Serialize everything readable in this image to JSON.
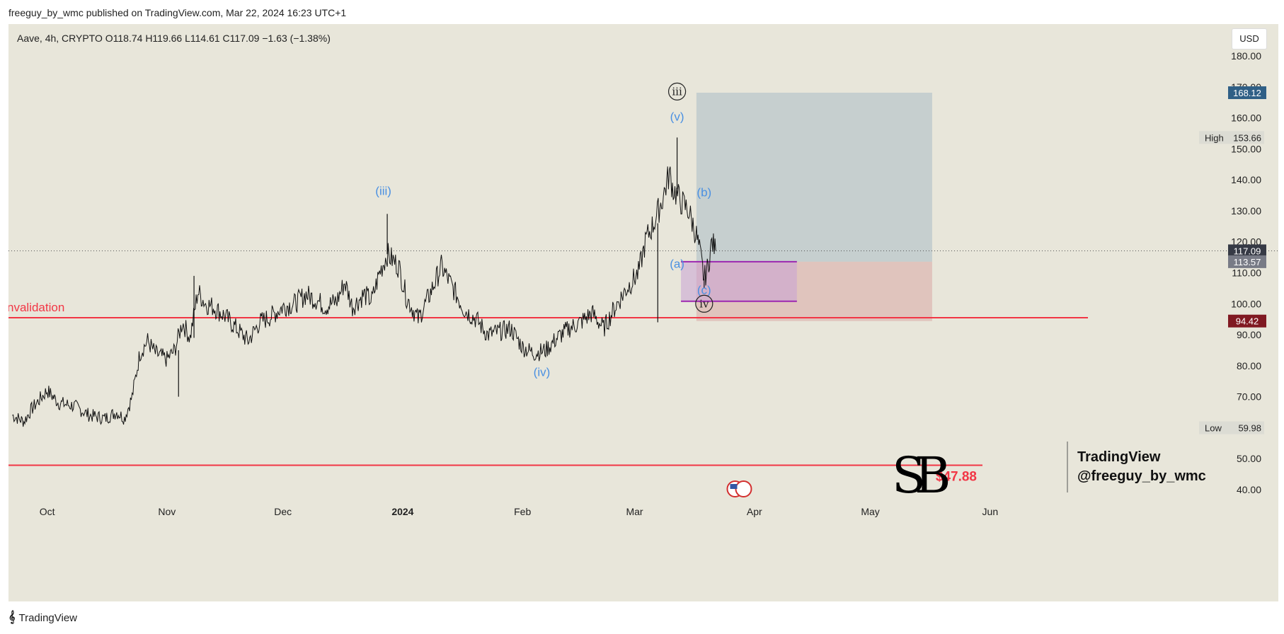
{
  "header": {
    "published_line": "freeguy_by_wmc published on TradingView.com, Mar 22, 2024 16:23 UTC+1"
  },
  "symbol_info": "Aave, 4h, CRYPTO  O118.74  H119.66  L114.61  C117.09  −1.63 (−1.38%)",
  "currency_button": "USD",
  "footer": {
    "brand": "TradingView"
  },
  "watermark": {
    "line1": "TradingView",
    "line2": "@freeguy_by_wmc",
    "logo_letters": "SB"
  },
  "colors": {
    "background": "#e8e6da",
    "candles": "#111111",
    "red_line": "#f23645",
    "wave_label_blue": "#4a90e2",
    "target_zone": "#a9bcc6",
    "stop_zone": "#d9a8a6",
    "purple_box": "#9c27b0",
    "last_price_tag": "#363a45",
    "entry_tag": "#787b86",
    "target_tag": "#2f5f86",
    "stop_tag": "#801922"
  },
  "chart_data": {
    "type": "candlestick-line",
    "ylim": [
      37,
      190
    ],
    "y_ticks": [
      "180.00",
      "170.00",
      "160.00",
      "150.00",
      "140.00",
      "130.00",
      "120.00",
      "110.00",
      "100.00",
      "90.00",
      "80.00",
      "70.00",
      "60.00",
      "50.00",
      "40.00"
    ],
    "x_ticks": [
      {
        "label": "Oct",
        "date": "2023-10-01",
        "bold": false
      },
      {
        "label": "Nov",
        "date": "2023-11-01",
        "bold": false
      },
      {
        "label": "Dec",
        "date": "2023-12-01",
        "bold": false
      },
      {
        "label": "2024",
        "date": "2024-01-01",
        "bold": true
      },
      {
        "label": "Feb",
        "date": "2024-02-01",
        "bold": false
      },
      {
        "label": "Mar",
        "date": "2024-03-01",
        "bold": false
      },
      {
        "label": "Apr",
        "date": "2024-04-01",
        "bold": false
      },
      {
        "label": "May",
        "date": "2024-05-01",
        "bold": false
      },
      {
        "label": "Jun",
        "date": "2024-06-01",
        "bold": false
      }
    ],
    "price_path": [
      [
        "2023-09-22",
        64
      ],
      [
        "2023-09-25",
        62
      ],
      [
        "2023-09-27",
        66
      ],
      [
        "2023-10-01",
        72
      ],
      [
        "2023-10-04",
        68
      ],
      [
        "2023-10-08",
        67
      ],
      [
        "2023-10-12",
        64
      ],
      [
        "2023-10-16",
        63
      ],
      [
        "2023-10-19",
        65
      ],
      [
        "2023-10-21",
        63
      ],
      [
        "2023-10-23",
        70
      ],
      [
        "2023-10-25",
        84
      ],
      [
        "2023-10-27",
        88
      ],
      [
        "2023-10-29",
        84
      ],
      [
        "2023-11-01",
        82
      ],
      [
        "2023-11-03",
        85
      ],
      [
        "2023-11-05",
        94
      ],
      [
        "2023-11-07",
        89
      ],
      [
        "2023-11-09",
        104
      ],
      [
        "2023-11-11",
        100
      ],
      [
        "2023-11-13",
        99
      ],
      [
        "2023-11-16",
        96
      ],
      [
        "2023-11-19",
        92
      ],
      [
        "2023-11-22",
        88
      ],
      [
        "2023-11-25",
        94
      ],
      [
        "2023-11-28",
        96
      ],
      [
        "2023-12-01",
        99
      ],
      [
        "2023-12-04",
        100
      ],
      [
        "2023-12-07",
        103
      ],
      [
        "2023-12-10",
        101
      ],
      [
        "2023-12-12",
        99
      ],
      [
        "2023-12-15",
        101
      ],
      [
        "2023-12-17",
        107
      ],
      [
        "2023-12-19",
        99
      ],
      [
        "2023-12-22",
        103
      ],
      [
        "2023-12-24",
        101
      ],
      [
        "2023-12-26",
        110
      ],
      [
        "2023-12-28",
        116
      ],
      [
        "2023-12-31",
        112
      ],
      [
        "2024-01-02",
        102
      ],
      [
        "2024-01-05",
        95
      ],
      [
        "2024-01-08",
        103
      ],
      [
        "2024-01-11",
        112
      ],
      [
        "2024-01-14",
        105
      ],
      [
        "2024-01-17",
        98
      ],
      [
        "2024-01-20",
        95
      ],
      [
        "2024-01-23",
        90
      ],
      [
        "2024-01-26",
        91
      ],
      [
        "2024-01-29",
        92
      ],
      [
        "2024-02-01",
        86
      ],
      [
        "2024-02-04",
        84
      ],
      [
        "2024-02-07",
        85
      ],
      [
        "2024-02-10",
        89
      ],
      [
        "2024-02-13",
        92
      ],
      [
        "2024-02-16",
        94
      ],
      [
        "2024-02-19",
        97
      ],
      [
        "2024-02-22",
        92
      ],
      [
        "2024-02-25",
        99
      ],
      [
        "2024-02-28",
        105
      ],
      [
        "2024-03-02",
        110
      ],
      [
        "2024-03-04",
        121
      ],
      [
        "2024-03-06",
        126
      ],
      [
        "2024-03-08",
        133
      ],
      [
        "2024-03-10",
        142
      ],
      [
        "2024-03-11",
        137
      ],
      [
        "2024-03-13",
        133
      ],
      [
        "2024-03-15",
        130
      ],
      [
        "2024-03-17",
        122
      ],
      [
        "2024-03-18",
        116
      ],
      [
        "2024-03-19",
        108
      ],
      [
        "2024-03-20",
        112
      ],
      [
        "2024-03-21",
        120
      ],
      [
        "2024-03-22",
        117.09
      ]
    ],
    "wick_extremes": [
      {
        "date": "2023-11-04",
        "value": 70
      },
      {
        "date": "2023-11-08",
        "value": 109
      },
      {
        "date": "2023-12-28",
        "value": 129
      },
      {
        "date": "2024-03-07",
        "value": 94
      },
      {
        "date": "2024-03-12",
        "value": 153.66
      },
      {
        "date": "2024-03-19",
        "value": 105
      }
    ],
    "horizontal_lines": [
      {
        "name": "invalidation",
        "value": 95.5,
        "label": "nvalidation"
      },
      {
        "name": "target-low",
        "value": 47.88,
        "label": "$47.88"
      }
    ],
    "current_price": 117.09,
    "position": {
      "entry": 113.57,
      "target": 168.12,
      "stop": 94.42,
      "start": "2024-03-17",
      "end": "2024-05-17"
    },
    "purple_box": {
      "top": 113.57,
      "bottom": 100.8,
      "start": "2024-03-13",
      "end": "2024-04-12"
    },
    "wave_labels": [
      {
        "text": "(iii)",
        "date": "2023-12-27",
        "value": 136.5,
        "style": "blue"
      },
      {
        "text": "(iv)",
        "date": "2024-02-06",
        "value": 78,
        "style": "blue"
      },
      {
        "text": "(v)",
        "date": "2024-03-12",
        "value": 160.5,
        "style": "blue"
      },
      {
        "text": "(a)",
        "date": "2024-03-12",
        "value": 113,
        "style": "blue"
      },
      {
        "text": "(b)",
        "date": "2024-03-19",
        "value": 136,
        "style": "blue"
      },
      {
        "text": "(c)",
        "date": "2024-03-19",
        "value": 104.5,
        "style": "blue"
      },
      {
        "text": "iii",
        "date": "2024-03-12",
        "value": 168.5,
        "style": "circled"
      },
      {
        "text": "iv",
        "date": "2024-03-19",
        "value": 100,
        "style": "circled"
      }
    ],
    "price_tags": [
      {
        "name": "target-tag",
        "value": 168.12,
        "text": "168.12",
        "color": "#2f5f86"
      },
      {
        "name": "last-price-tag",
        "value": 117.09,
        "text": "117.09",
        "color": "#363a45"
      },
      {
        "name": "entry-tag",
        "value": 113.57,
        "text": "113.57",
        "color": "#787b86"
      },
      {
        "name": "stop-tag",
        "value": 94.42,
        "text": "94.42",
        "color": "#801922"
      }
    ],
    "high_low": [
      {
        "label": "High",
        "value": 153.66,
        "text": "153.66"
      },
      {
        "label": "Low",
        "value": 59.98,
        "text": "59.98"
      }
    ]
  }
}
